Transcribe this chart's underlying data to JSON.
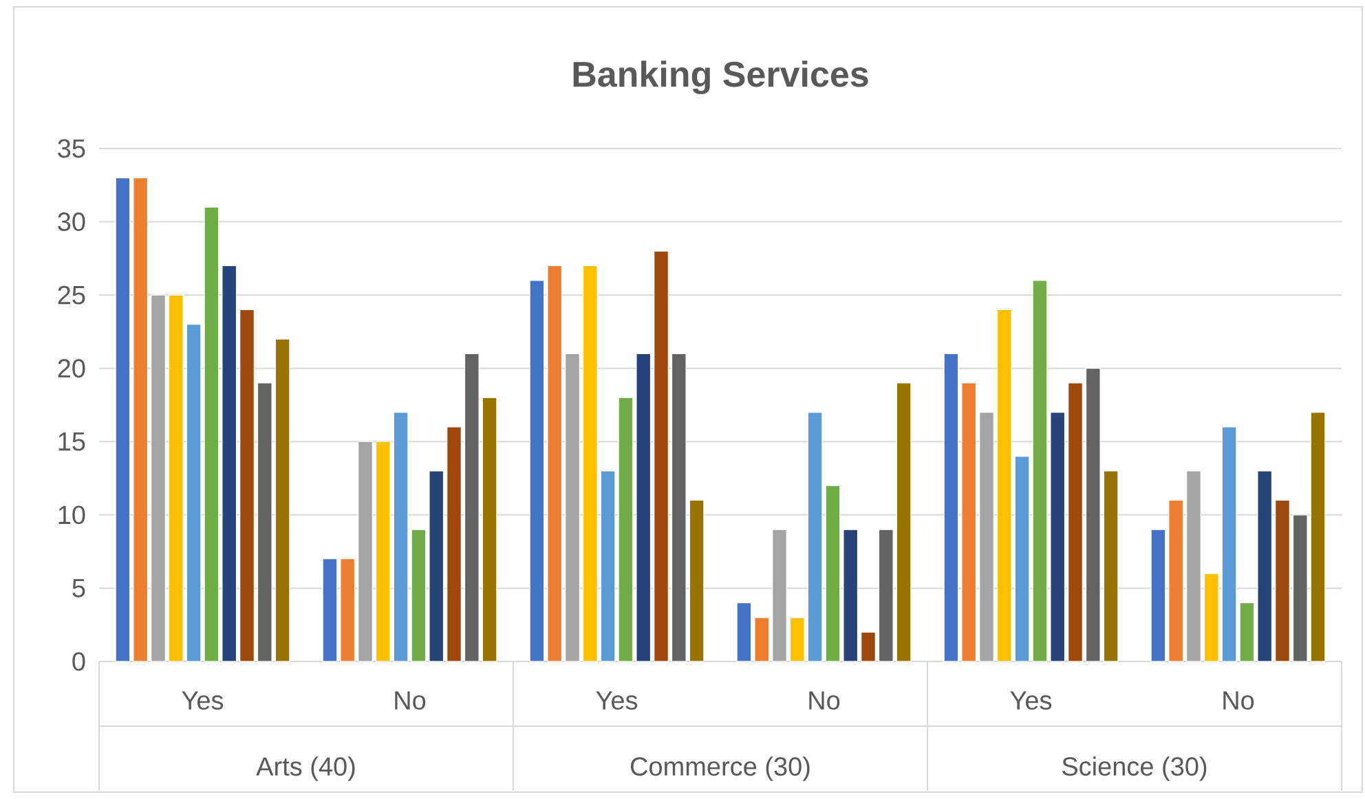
{
  "chart_data": {
    "type": "bar",
    "title": "Banking Services",
    "categories": [
      "Yes",
      "No",
      "Yes",
      "No",
      "Yes",
      "No"
    ],
    "annotations": [
      "Arts (40)",
      "Commerce (30)",
      "Science (30)"
    ],
    "series": [
      {
        "color": "#4472c4",
        "values": [
          33,
          7,
          26,
          4,
          21,
          9
        ]
      },
      {
        "color": "#ed7d31",
        "values": [
          33,
          7,
          27,
          3,
          19,
          11
        ]
      },
      {
        "color": "#a5a5a5",
        "values": [
          25,
          15,
          21,
          9,
          17,
          13
        ]
      },
      {
        "color": "#ffc000",
        "values": [
          25,
          15,
          27,
          3,
          24,
          6
        ]
      },
      {
        "color": "#5b9bd5",
        "values": [
          23,
          17,
          13,
          17,
          14,
          16
        ]
      },
      {
        "color": "#70ad47",
        "values": [
          31,
          9,
          18,
          12,
          26,
          4
        ]
      },
      {
        "color": "#264478",
        "values": [
          27,
          13,
          21,
          9,
          17,
          13
        ]
      },
      {
        "color": "#9e480e",
        "values": [
          24,
          16,
          28,
          2,
          19,
          11
        ]
      },
      {
        "color": "#636363",
        "values": [
          19,
          21,
          21,
          9,
          20,
          10
        ]
      },
      {
        "color": "#997300",
        "values": [
          22,
          18,
          11,
          19,
          13,
          17
        ]
      }
    ],
    "ylim": [
      0,
      35
    ],
    "yticks": [
      0,
      5,
      10,
      15,
      20,
      25,
      30,
      35
    ],
    "grid": "y"
  }
}
